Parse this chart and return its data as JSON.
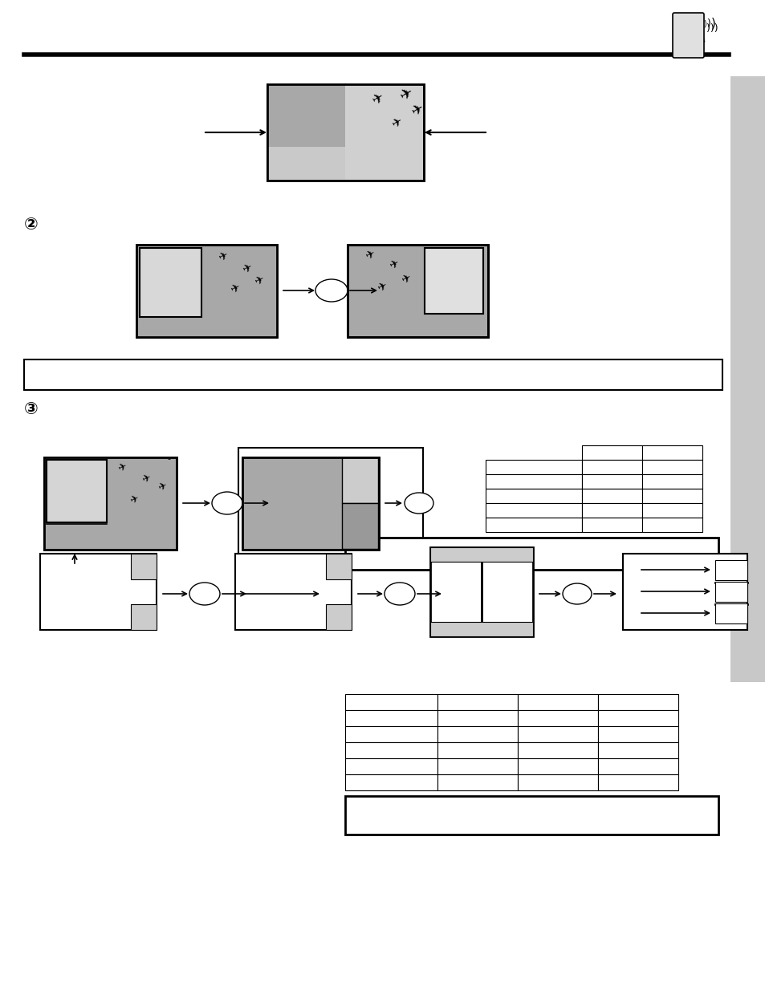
{
  "bg_color": "#ffffff",
  "page_width": 9.54,
  "page_height": 12.35,
  "sidebar_color": "#c8c8c8",
  "gray_img": "#a8a8a8",
  "gray_dark": "#888888",
  "gray_light": "#cccccc",
  "gray_mid": "#b0b0b0"
}
